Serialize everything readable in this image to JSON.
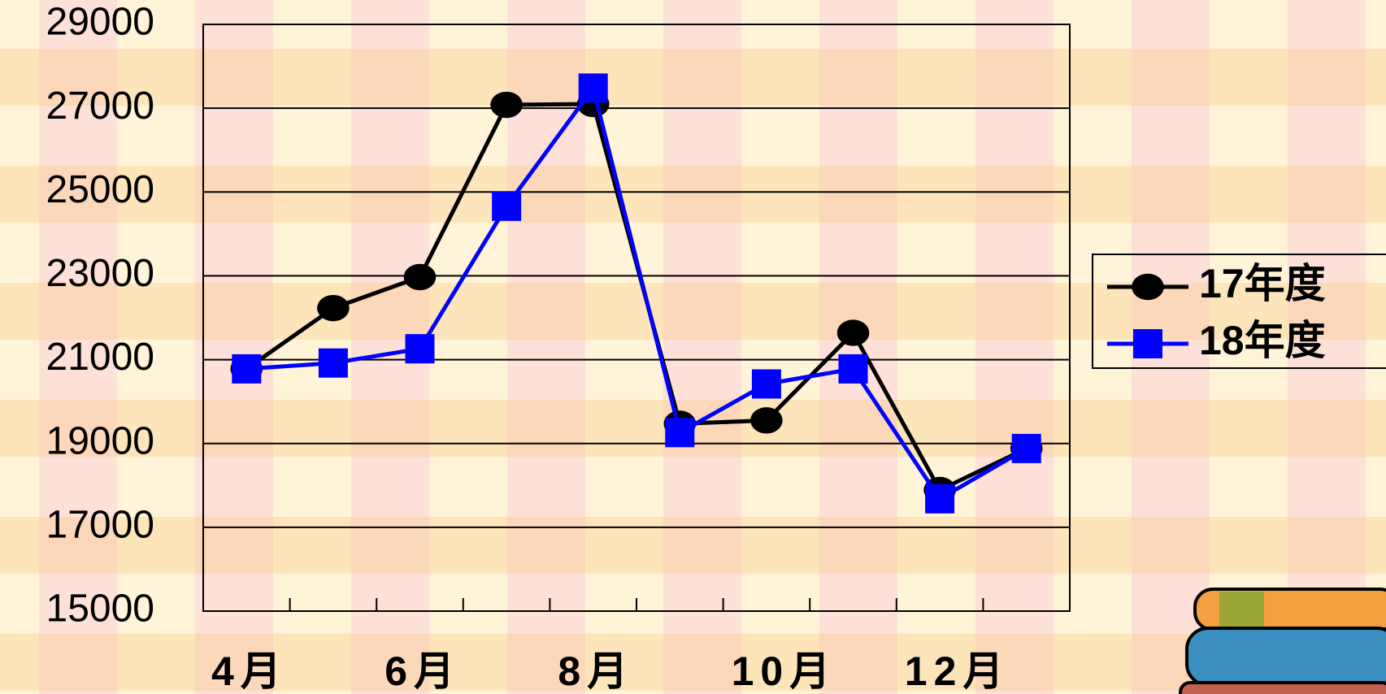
{
  "chart_data": {
    "type": "line",
    "categories": [
      "4月",
      null,
      "6月",
      null,
      "8月",
      null,
      "10月",
      null,
      "12月",
      null
    ],
    "series": [
      {
        "name": "17年度",
        "color": "#000000",
        "marker": "circle",
        "values": [
          20780,
          22230,
          22970,
          27080,
          27100,
          19470,
          19550,
          21640,
          17890,
          18880
        ]
      },
      {
        "name": "18年度",
        "color": "#0000ff",
        "marker": "square",
        "values": [
          20780,
          20920,
          21260,
          24660,
          27480,
          19260,
          20420,
          20780,
          17680,
          18880
        ]
      }
    ],
    "ylim": [
      15000,
      29000
    ],
    "yticks": [
      15000,
      17000,
      19000,
      21000,
      23000,
      25000,
      27000,
      29000
    ],
    "grid": true,
    "legend": "right"
  }
}
